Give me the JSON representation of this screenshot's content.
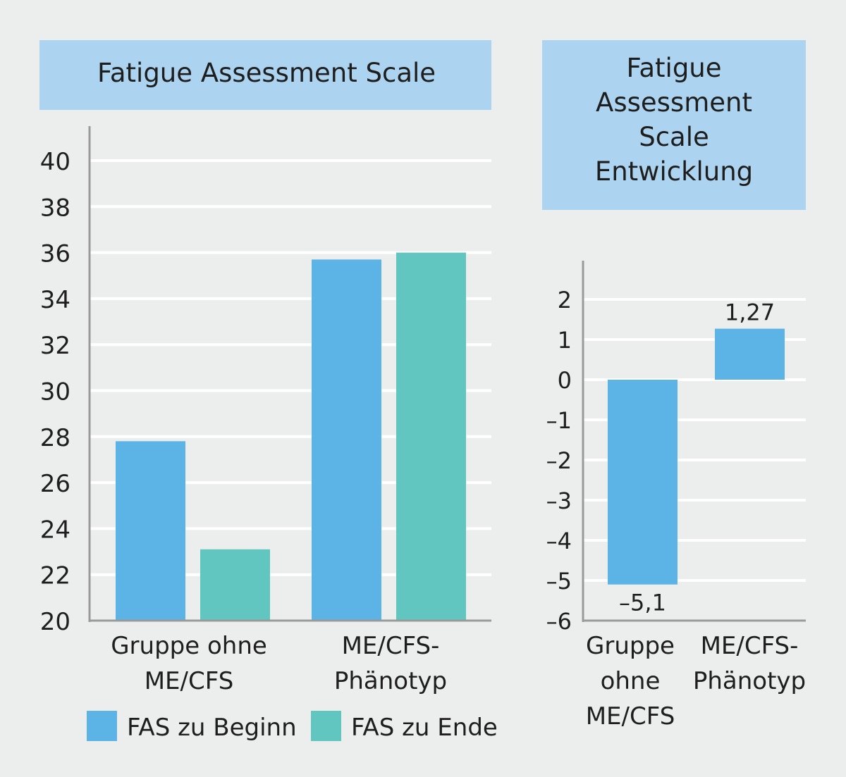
{
  "colors": {
    "background": "#eceeee",
    "title_box": "#acd3f0",
    "series_beginn": "#5bb3e6",
    "series_ende": "#60c6bf",
    "axis": "#9a9a9a",
    "gridline": "#ffffff",
    "text": "#1e1e1e"
  },
  "chart_data": [
    {
      "type": "bar",
      "title": "Fatigue Assessment Scale",
      "categories": [
        [
          "Gruppe ohne",
          "ME/CFS"
        ],
        [
          "ME/CFS-",
          "Phänotyp"
        ]
      ],
      "series": [
        {
          "name": "FAS zu Beginn",
          "values": [
            27.8,
            35.7
          ]
        },
        {
          "name": "FAS zu Ende",
          "values": [
            23.1,
            36.0
          ]
        }
      ],
      "ylim": [
        20,
        41
      ],
      "yticks": [
        20,
        22,
        24,
        26,
        28,
        30,
        32,
        34,
        36,
        38,
        40
      ],
      "grid": true,
      "legend": "bottom"
    },
    {
      "type": "bar",
      "title": [
        "Fatigue",
        "Assessment",
        "Scale",
        "Entwicklung"
      ],
      "categories": [
        [
          "Gruppe",
          "ohne",
          "ME/CFS"
        ],
        [
          "ME/CFS-",
          "Phänotyp"
        ]
      ],
      "values": [
        -5.1,
        1.27
      ],
      "data_labels": [
        "–5,1",
        "1,27"
      ],
      "ylim": [
        -6,
        2.8
      ],
      "yticks": [
        -6,
        -5,
        -4,
        -3,
        -2,
        -1,
        0,
        1,
        2
      ],
      "ytick_labels": [
        "–6",
        "–5",
        "–4",
        "–3",
        "–2",
        "–1",
        "0",
        "1",
        "2"
      ],
      "grid": true
    }
  ]
}
